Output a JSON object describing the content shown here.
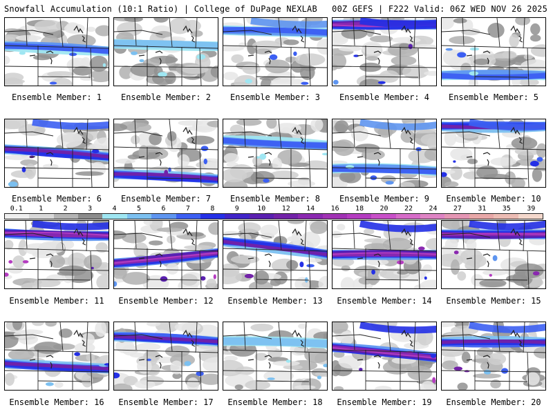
{
  "header": {
    "left": "Snowfall Accumulation (10:1 Ratio) | College of DuPage NEXLAB",
    "right": "00Z GEFS | F222 Valid: 06Z WED NOV 26 2025"
  },
  "legend": {
    "labels": [
      "0.1",
      "1",
      "2",
      "3",
      "4",
      "5",
      "6",
      "7",
      "8",
      "9",
      "10",
      "12",
      "14",
      "16",
      "18",
      "20",
      "22",
      "24",
      "27",
      "31",
      "35",
      "39"
    ],
    "colors": [
      "#efefef",
      "#d8d8d8",
      "#b4b4b4",
      "#8c8c8c",
      "#9fe6f2",
      "#7cc0f0",
      "#5e95f0",
      "#3c5ff2",
      "#2430e6",
      "#4024c8",
      "#5a20b0",
      "#7222a8",
      "#8a28b0",
      "#a032b4",
      "#b43cc0",
      "#c850c8",
      "#d66cc8",
      "#de84c4",
      "#e496b4",
      "#e8a8a8",
      "#ecbcb4",
      "#f4d8cc"
    ]
  },
  "members": [
    {
      "caption": "Ensemble Member: 1"
    },
    {
      "caption": "Ensemble Member: 2"
    },
    {
      "caption": "Ensemble Member: 3"
    },
    {
      "caption": "Ensemble Member: 4"
    },
    {
      "caption": "Ensemble Member: 5"
    },
    {
      "caption": "Ensemble Member: 6"
    },
    {
      "caption": "Ensemble Member: 7"
    },
    {
      "caption": "Ensemble Member: 8"
    },
    {
      "caption": "Ensemble Member: 9"
    },
    {
      "caption": "Ensemble Member: 10"
    },
    {
      "caption": "Ensemble Member: 11"
    },
    {
      "caption": "Ensemble Member: 12"
    },
    {
      "caption": "Ensemble Member: 13"
    },
    {
      "caption": "Ensemble Member: 14"
    },
    {
      "caption": "Ensemble Member: 15"
    },
    {
      "caption": "Ensemble Member: 16"
    },
    {
      "caption": "Ensemble Member: 17"
    },
    {
      "caption": "Ensemble Member: 18"
    },
    {
      "caption": "Ensemble Member: 19"
    },
    {
      "caption": "Ensemble Member: 20"
    }
  ]
}
